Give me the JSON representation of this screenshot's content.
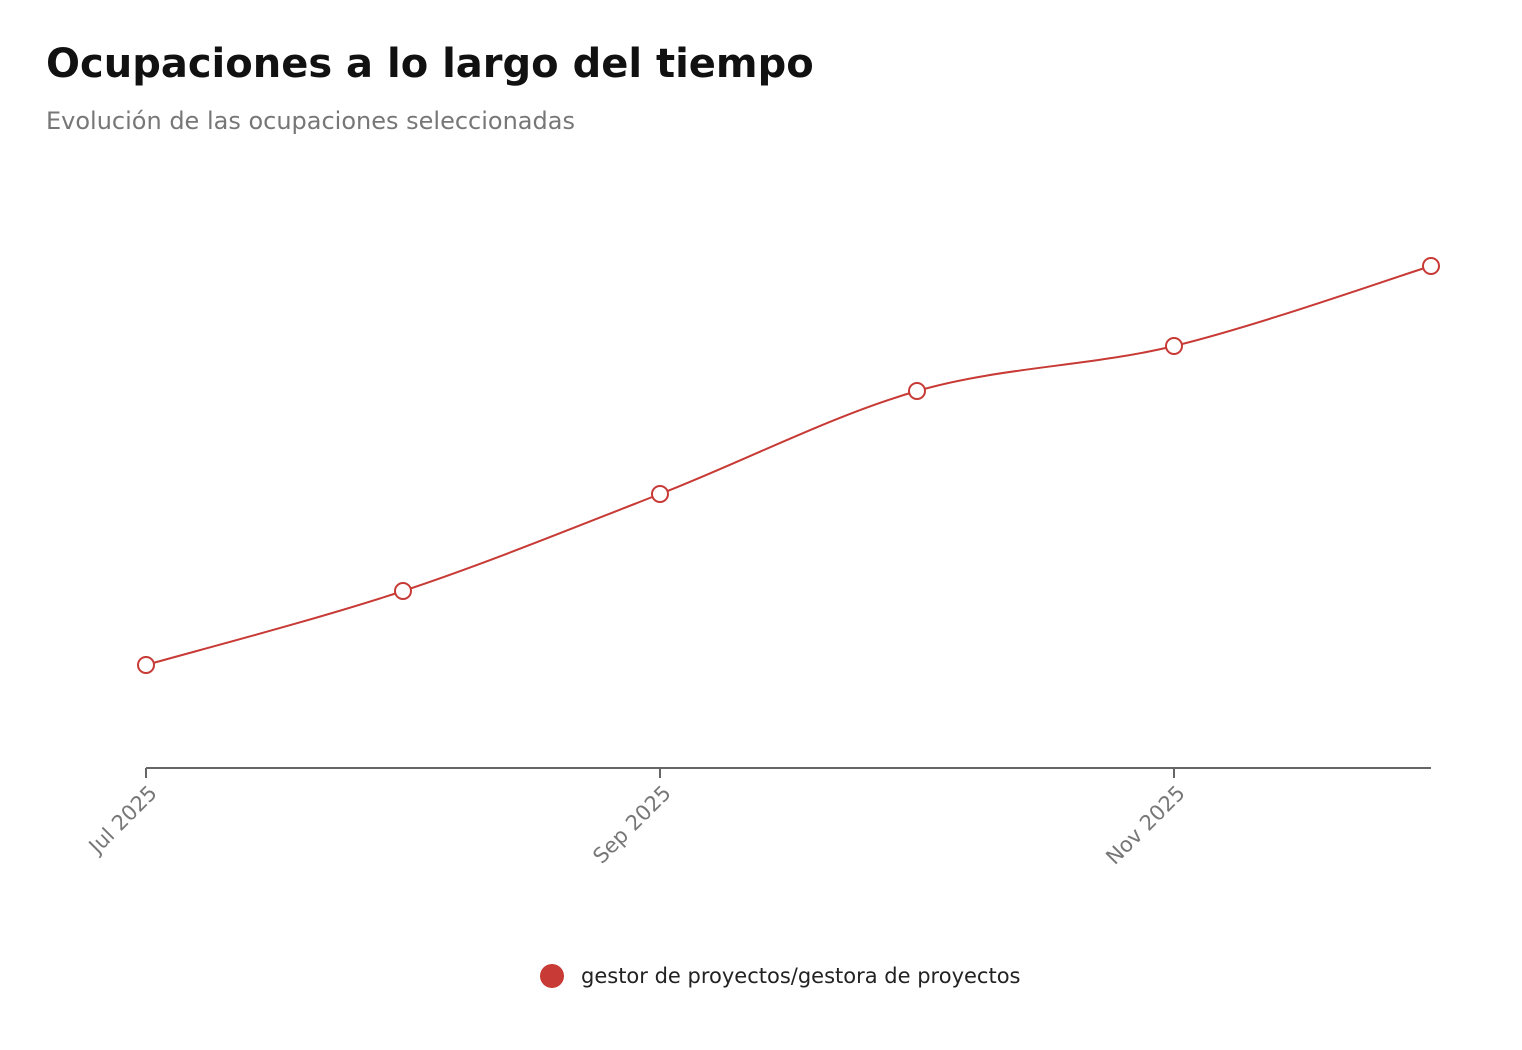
{
  "chart_data": {
    "type": "line",
    "title": "Ocupaciones a lo largo del tiempo",
    "subtitle": "Evolución de las ocupaciones seleccionadas",
    "categories": [
      "Jul 2025",
      null,
      "Sep 2025",
      null,
      "Nov 2025",
      null
    ],
    "series": [
      {
        "name": "gestor de proyectos/gestora de proyectos",
        "color": "#c73a35",
        "values": [
          103,
          177,
          274,
          377,
          422,
          502
        ]
      }
    ],
    "ylim": [
      0,
      602
    ],
    "grid": false,
    "legend": "bottom"
  }
}
